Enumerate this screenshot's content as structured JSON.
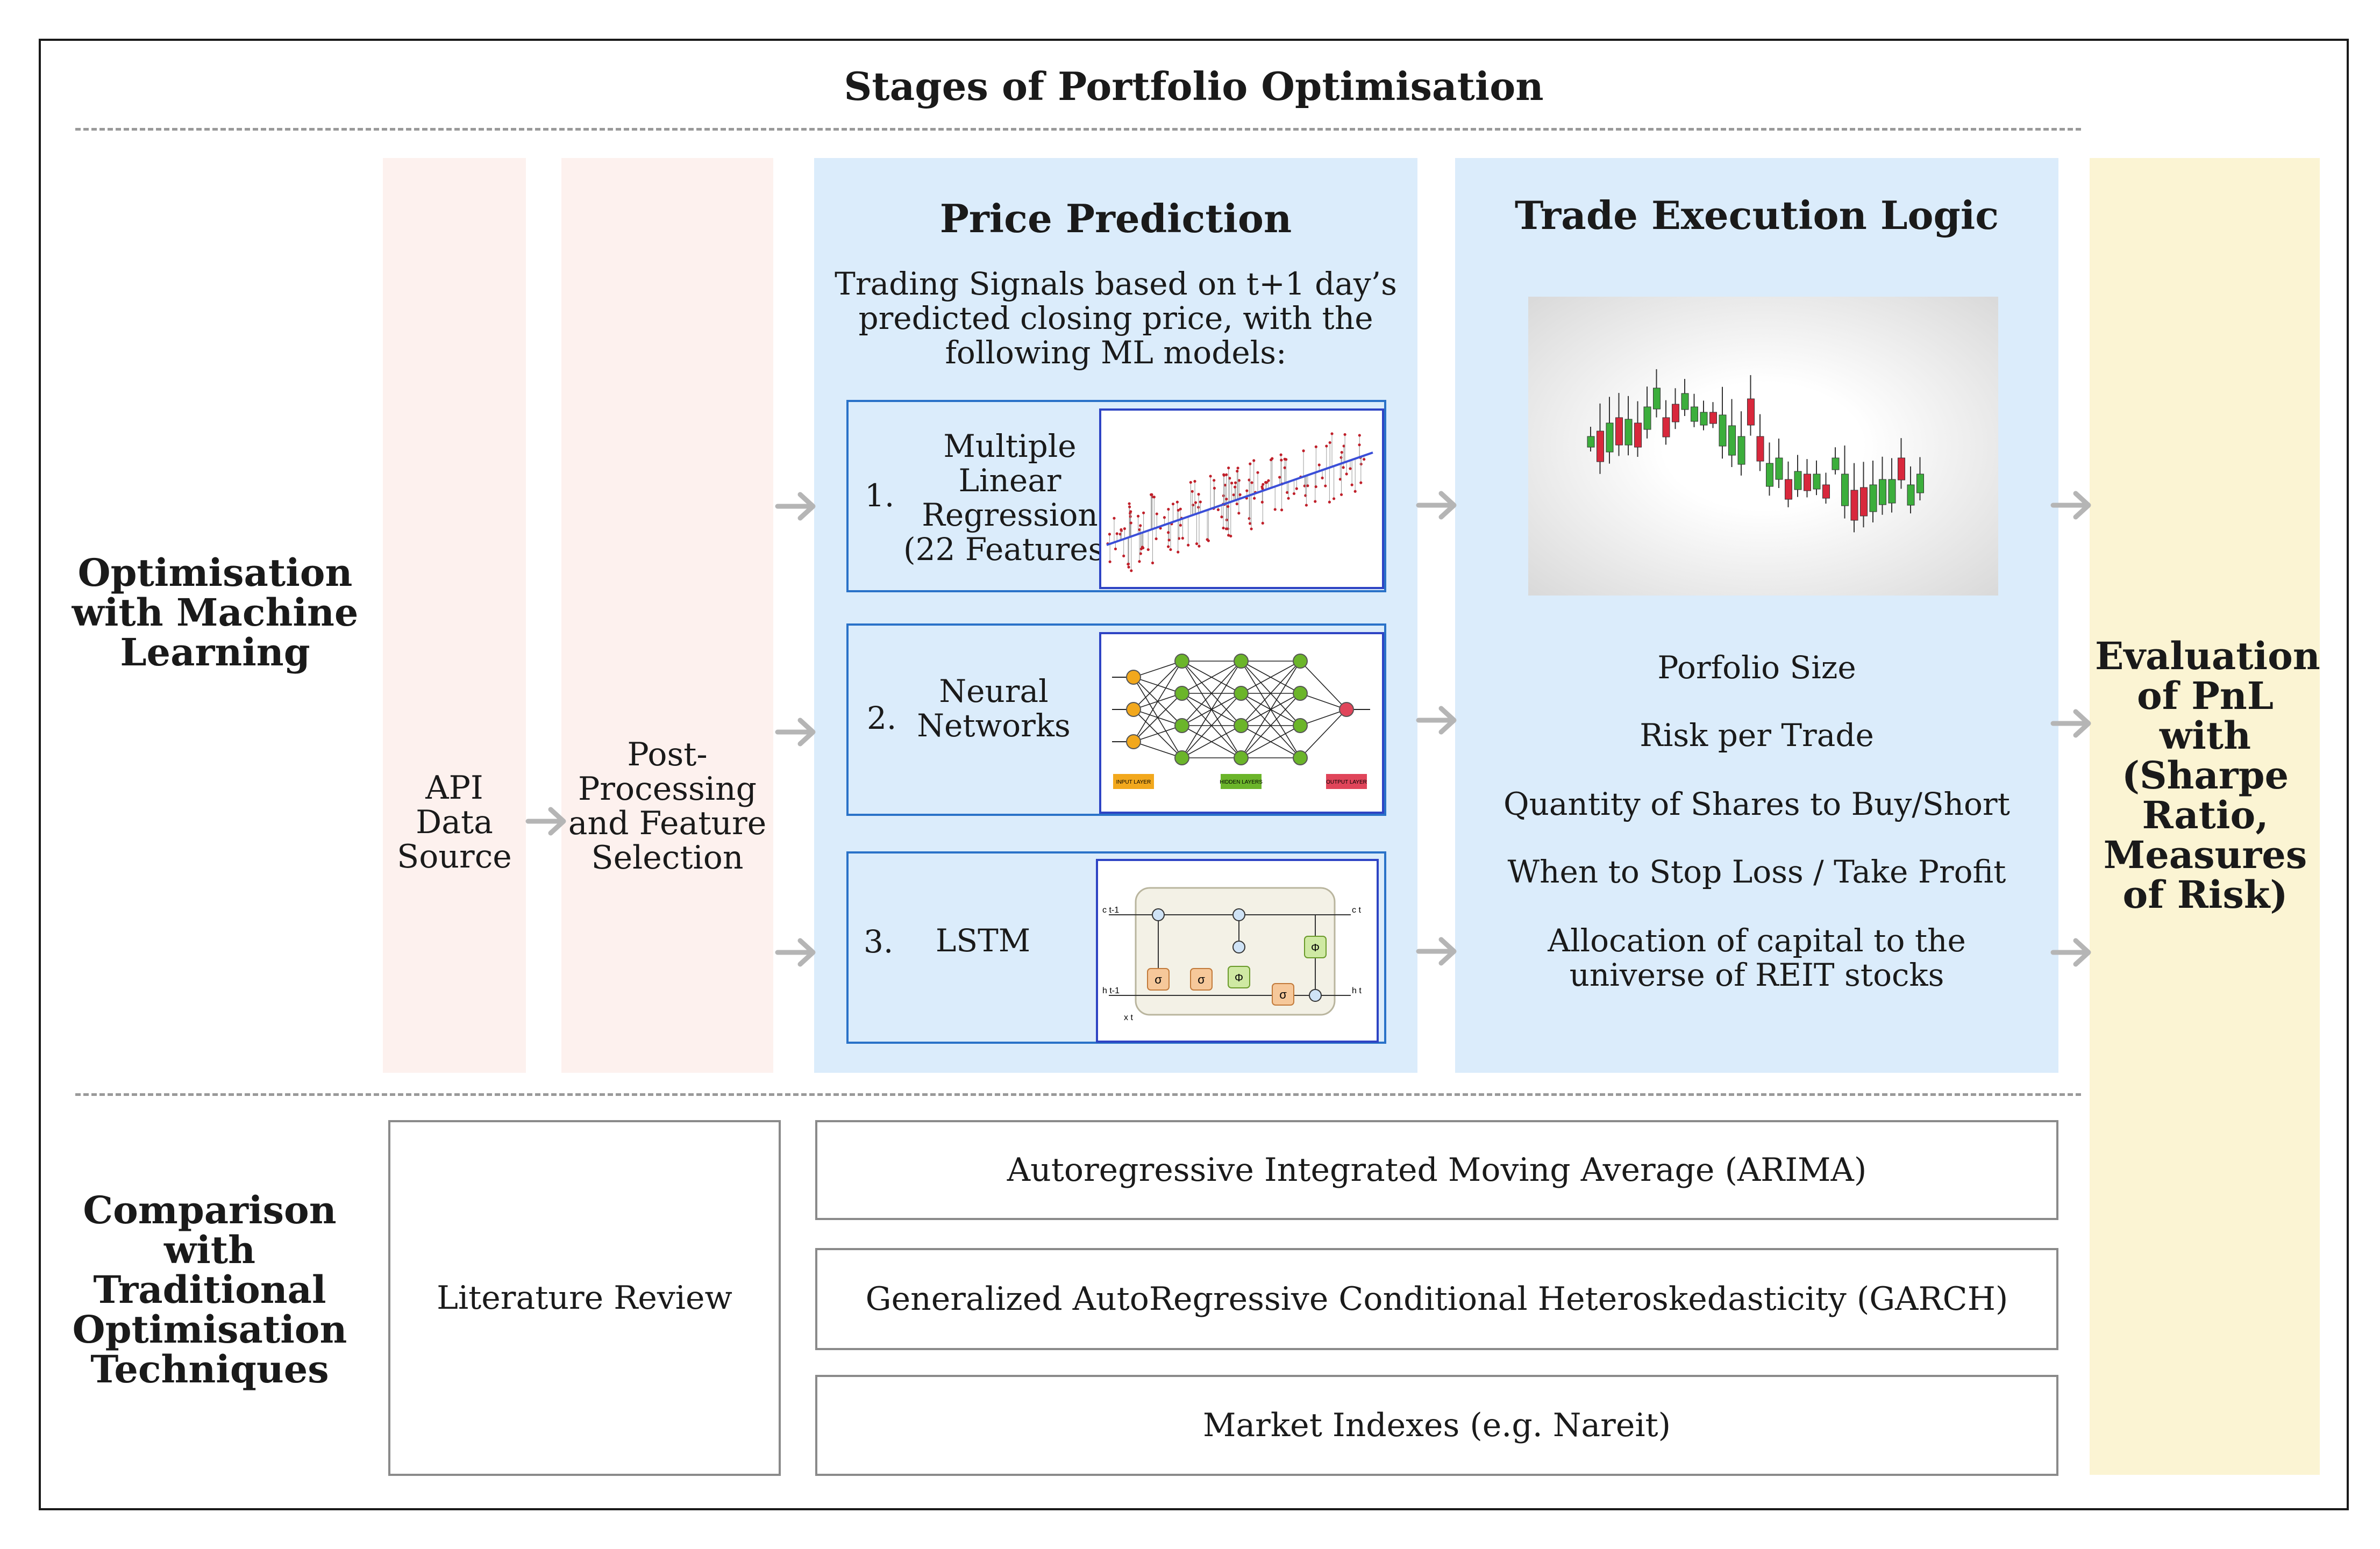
{
  "title": "Stages of Portfolio Optimisation",
  "rows": {
    "ml_label": "Optimisation with Machine Learning",
    "traditional_label": "Comparison with Traditional Optimisation Techniques"
  },
  "stages": {
    "api": "API Data Source",
    "post_processing": "Post-Processing and Feature Selection",
    "price_prediction": {
      "heading": "Price Prediction",
      "description": "Trading Signals based on t+1 day’s predicted closing price, with the following ML models:",
      "models": [
        {
          "number": "1.",
          "name": "Multiple Linear Regression (22 Features)"
        },
        {
          "number": "2.",
          "name": "Neural Networks"
        },
        {
          "number": "3.",
          "name": "LSTM"
        }
      ]
    },
    "trade_execution": {
      "heading": "Trade Execution Logic",
      "items": [
        "Porfolio Size",
        "Risk per Trade",
        "Quantity of Shares to Buy/Short",
        "When to Stop Loss / Take Profit",
        "Allocation of capital to the universe of REIT stocks"
      ]
    },
    "evaluation": "Evaluation of PnL with (Sharpe Ratio, Measures of Risk)"
  },
  "traditional": {
    "literature": "Literature Review",
    "methods": [
      "Autoregressive Integrated Moving Average (ARIMA)",
      "Generalized AutoRegressive Conditional Heteroskedasticity (GARCH)",
      "Market Indexes (e.g. Nareit)"
    ]
  },
  "nn_layer_labels": [
    "INPUT LAYER",
    "HIDDEN LAYERS",
    "OUTPUT LAYER"
  ],
  "lstm_labels": {
    "c_in": "c t-1",
    "c_out": "c t",
    "h_in": "h t-1",
    "h_out": "h t",
    "x_in": "x t",
    "sigma": "σ",
    "phi": "Φ",
    "times": "×",
    "plus": "+"
  },
  "colors": {
    "pink_panel": "#fdf1ee",
    "blue_panel": "#dbecfb",
    "yellow_panel": "#fbf4d3",
    "model_border": "#2a72c8",
    "arrow": "#b5b5b5",
    "candle_up": "#3cae3c",
    "candle_down": "#d8283c"
  }
}
